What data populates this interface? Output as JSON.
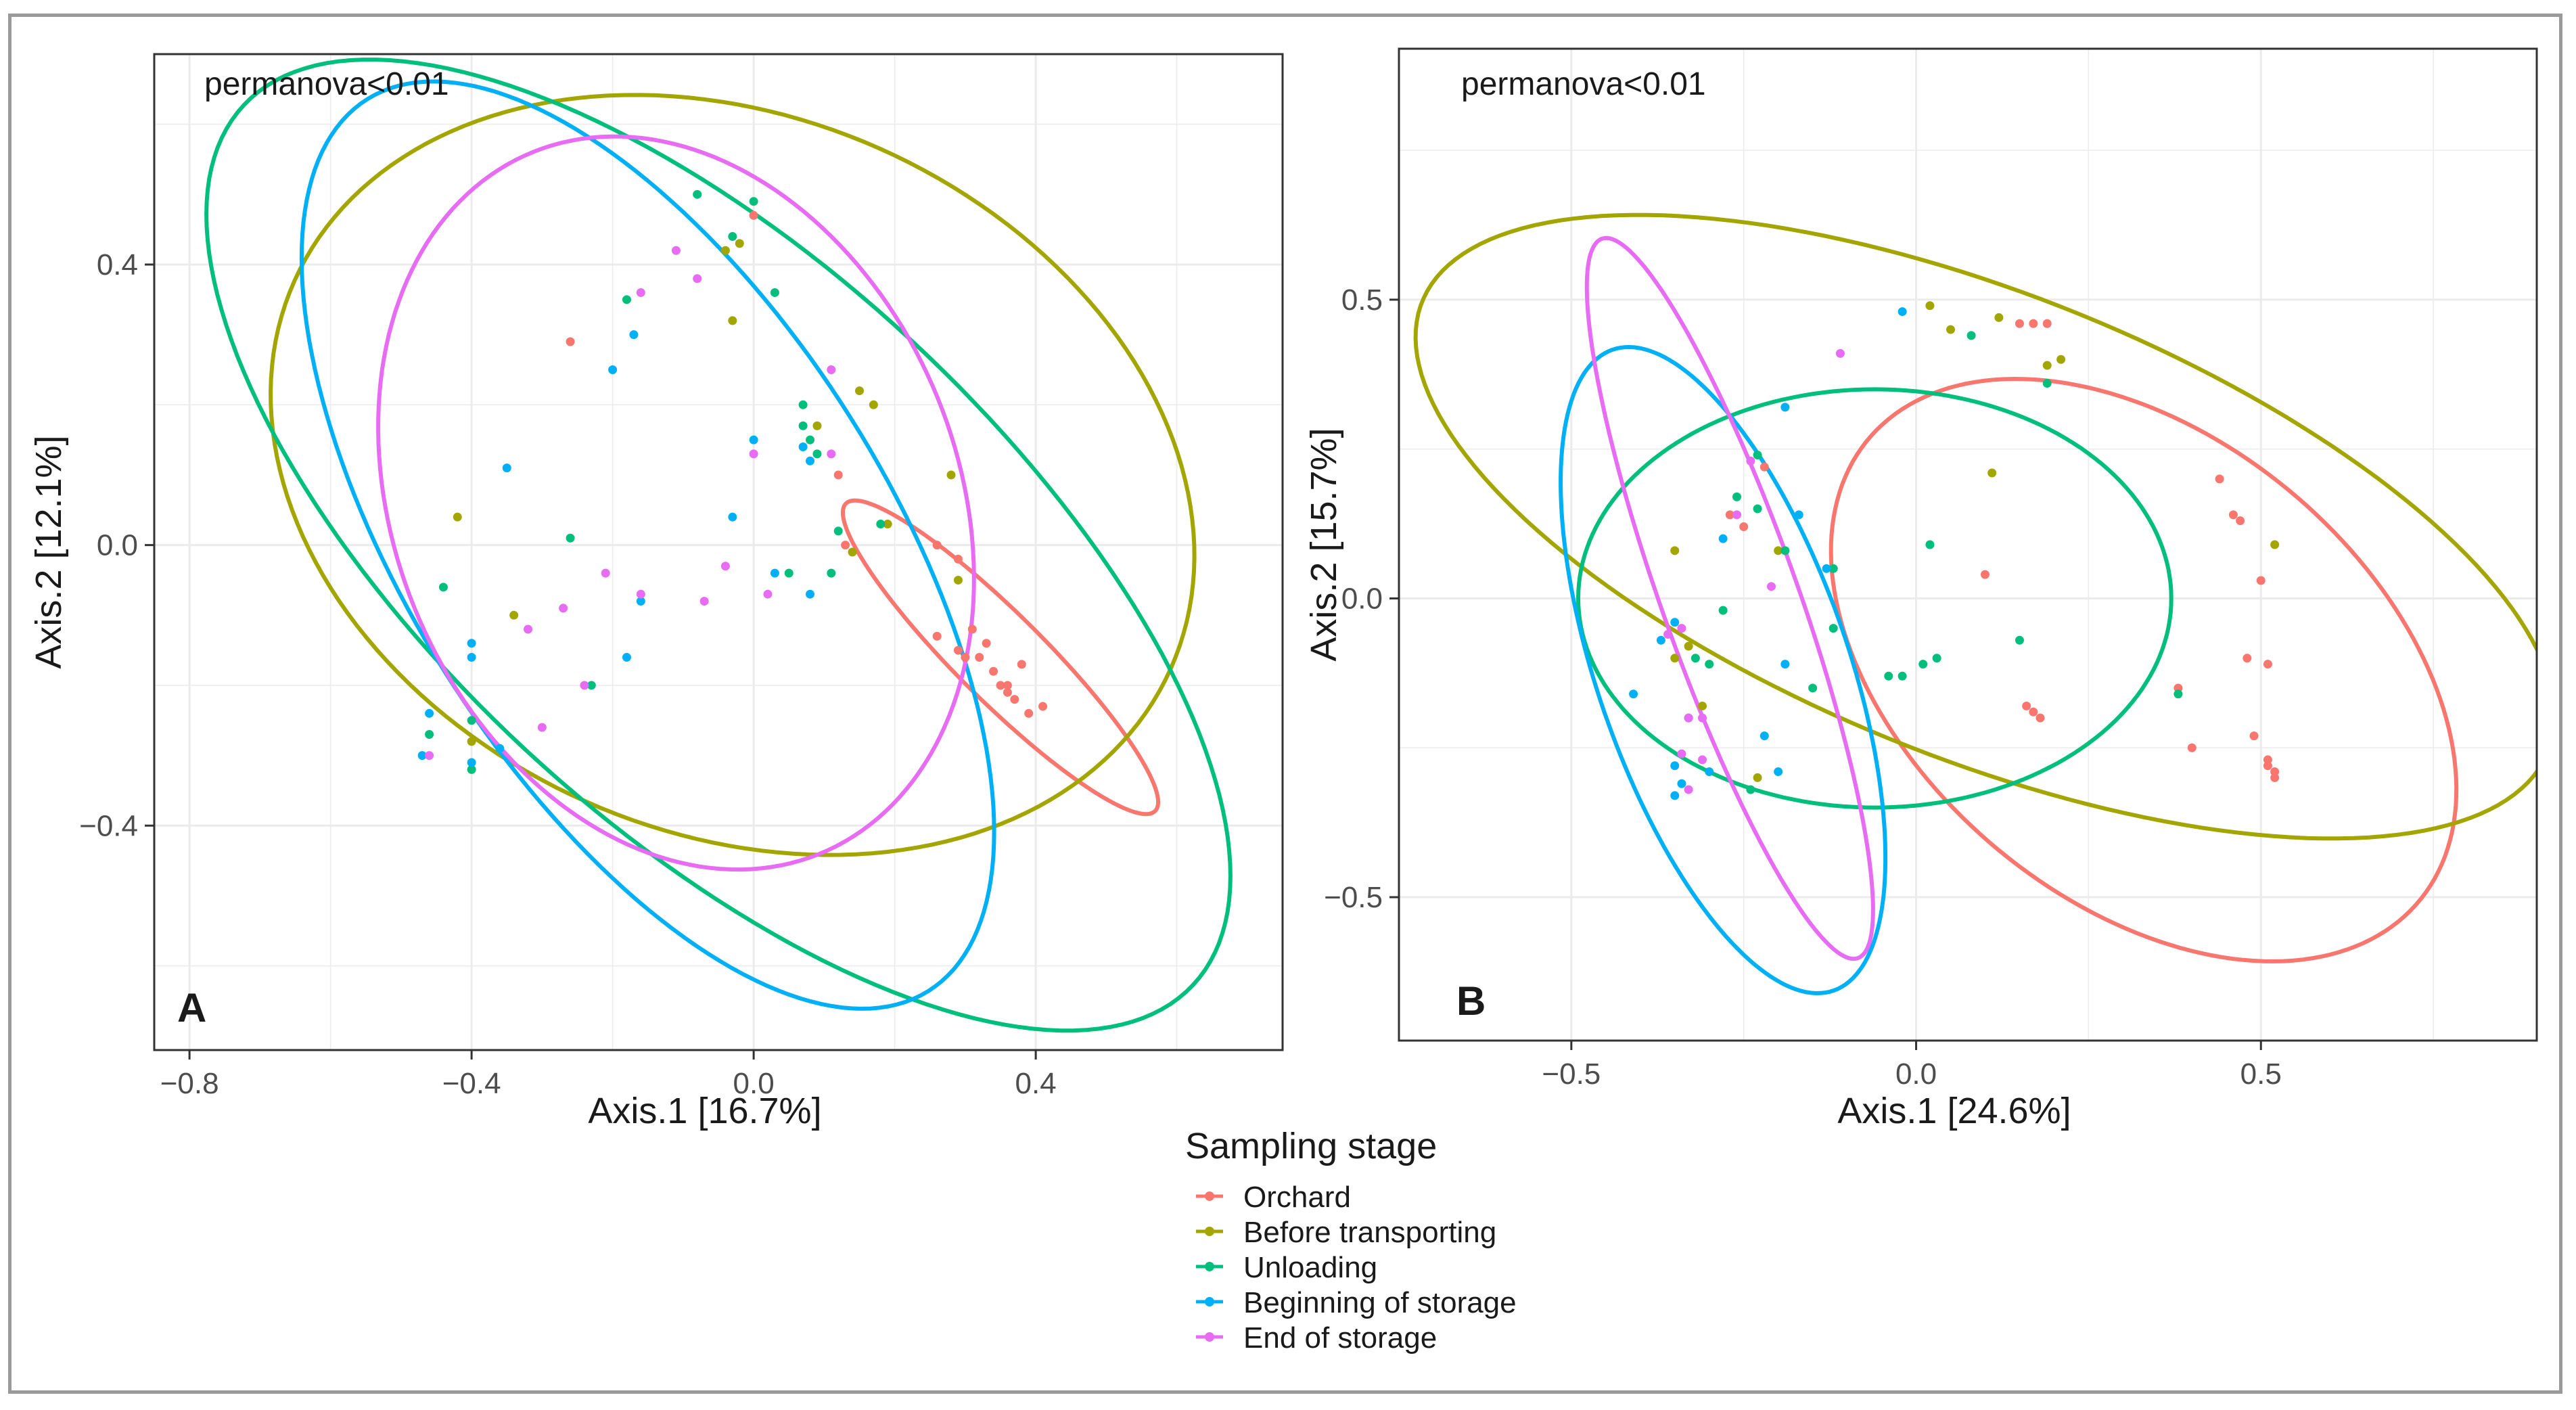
{
  "legend": {
    "title": "Sampling stage",
    "items": [
      {
        "label": "Orchard",
        "color": "#F8766D"
      },
      {
        "label": "Before transporting",
        "color": "#A3A500"
      },
      {
        "label": "Unloading",
        "color": "#00BF7D"
      },
      {
        "label": "Beginning of storage",
        "color": "#00B0F6"
      },
      {
        "label": "End of storage",
        "color": "#E76BF3"
      }
    ]
  },
  "chart_data": [
    {
      "type": "scatter",
      "panel": "A",
      "annotation": "permanova<0.01",
      "xlabel": "Axis.1   [16.7%]",
      "ylabel": "Axis.2   [12.1%]",
      "xlim": [
        -0.85,
        0.75
      ],
      "ylim": [
        -0.72,
        0.7
      ],
      "xticks": [
        -0.8,
        -0.4,
        0.0,
        0.4
      ],
      "xtick_labels": [
        "−0.8",
        "−0.4",
        "0.0",
        "0.4"
      ],
      "yticks": [
        -0.4,
        0.0,
        0.4
      ],
      "ytick_labels": [
        "−0.4",
        "0.0",
        "0.4"
      ],
      "grid": true,
      "series": [
        {
          "name": "Orchard",
          "color": "#F8766D",
          "points": [
            [
              0.0,
              0.47
            ],
            [
              -0.26,
              0.29
            ],
            [
              0.12,
              0.1
            ],
            [
              0.13,
              0.0
            ],
            [
              0.26,
              0.0
            ],
            [
              0.29,
              -0.02
            ],
            [
              0.26,
              -0.13
            ],
            [
              0.29,
              -0.15
            ],
            [
              0.31,
              -0.12
            ],
            [
              0.3,
              -0.16
            ],
            [
              0.32,
              -0.16
            ],
            [
              0.34,
              -0.18
            ],
            [
              0.35,
              -0.2
            ],
            [
              0.36,
              -0.21
            ],
            [
              0.37,
              -0.22
            ],
            [
              0.38,
              -0.17
            ],
            [
              0.39,
              -0.24
            ],
            [
              0.41,
              -0.23
            ],
            [
              0.36,
              -0.2
            ],
            [
              0.33,
              -0.14
            ]
          ],
          "ellipse": {
            "cx": 0.35,
            "cy": -0.16,
            "rx": 0.31,
            "ry": 0.062,
            "angle_deg": -45
          }
        },
        {
          "name": "Before transporting",
          "color": "#A3A500",
          "points": [
            [
              -0.04,
              0.42
            ],
            [
              -0.02,
              0.43
            ],
            [
              -0.03,
              0.32
            ],
            [
              0.15,
              0.22
            ],
            [
              0.17,
              0.2
            ],
            [
              0.09,
              0.17
            ],
            [
              -0.42,
              0.04
            ],
            [
              -0.34,
              -0.1
            ],
            [
              -0.4,
              -0.28
            ],
            [
              0.29,
              -0.05
            ],
            [
              0.28,
              0.1
            ],
            [
              0.19,
              0.03
            ],
            [
              0.14,
              -0.01
            ]
          ],
          "ellipse": {
            "cx": -0.03,
            "cy": 0.1,
            "rx": 0.68,
            "ry": 0.51,
            "angle_deg": -24
          }
        },
        {
          "name": "Unloading",
          "color": "#00BF7D",
          "points": [
            [
              0.0,
              0.49
            ],
            [
              -0.03,
              0.44
            ],
            [
              -0.08,
              0.5
            ],
            [
              -0.18,
              0.35
            ],
            [
              0.03,
              0.36
            ],
            [
              0.07,
              0.2
            ],
            [
              0.07,
              0.17
            ],
            [
              0.08,
              0.15
            ],
            [
              0.12,
              0.02
            ],
            [
              0.05,
              -0.04
            ],
            [
              0.11,
              -0.04
            ],
            [
              -0.26,
              0.01
            ],
            [
              -0.44,
              -0.06
            ],
            [
              -0.4,
              -0.25
            ],
            [
              -0.46,
              -0.27
            ],
            [
              -0.23,
              -0.2
            ],
            [
              -0.4,
              -0.32
            ],
            [
              0.18,
              0.03
            ],
            [
              0.09,
              0.13
            ]
          ],
          "ellipse": {
            "cx": -0.05,
            "cy": 0.0,
            "rx": 0.92,
            "ry": 0.4,
            "angle_deg": -43
          }
        },
        {
          "name": "Beginning of storage",
          "color": "#00B0F6",
          "points": [
            [
              -0.2,
              0.25
            ],
            [
              -0.17,
              0.3
            ],
            [
              -0.35,
              0.11
            ],
            [
              0.0,
              0.15
            ],
            [
              -0.03,
              0.04
            ],
            [
              0.03,
              -0.04
            ],
            [
              0.08,
              -0.07
            ],
            [
              -0.16,
              -0.08
            ],
            [
              -0.4,
              -0.16
            ],
            [
              -0.4,
              -0.14
            ],
            [
              -0.46,
              -0.24
            ],
            [
              -0.36,
              -0.29
            ],
            [
              -0.18,
              -0.16
            ],
            [
              -0.47,
              -0.3
            ],
            [
              -0.4,
              -0.31
            ],
            [
              0.07,
              0.14
            ],
            [
              0.08,
              0.12
            ]
          ],
          "ellipse": {
            "cx": -0.15,
            "cy": 0.0,
            "rx": 0.75,
            "ry": 0.34,
            "angle_deg": -58
          }
        },
        {
          "name": "End of storage",
          "color": "#E76BF3",
          "points": [
            [
              -0.11,
              0.42
            ],
            [
              -0.08,
              0.38
            ],
            [
              -0.16,
              0.36
            ],
            [
              0.11,
              0.25
            ],
            [
              0.0,
              0.13
            ],
            [
              0.11,
              0.13
            ],
            [
              -0.21,
              -0.04
            ],
            [
              -0.16,
              -0.07
            ],
            [
              -0.27,
              -0.09
            ],
            [
              -0.32,
              -0.12
            ],
            [
              -0.24,
              -0.2
            ],
            [
              -0.3,
              -0.26
            ],
            [
              -0.07,
              -0.08
            ],
            [
              0.02,
              -0.07
            ],
            [
              -0.46,
              -0.3
            ],
            [
              -0.04,
              -0.03
            ]
          ],
          "ellipse": {
            "cx": -0.11,
            "cy": 0.06,
            "rx": 0.54,
            "ry": 0.4,
            "angle_deg": -68
          }
        }
      ]
    },
    {
      "type": "scatter",
      "panel": "B",
      "annotation": "permanova<0.01",
      "xlabel": "Axis.1   [24.6%]",
      "ylabel": "Axis.2   [15.7%]",
      "xlim": [
        -0.75,
        0.9
      ],
      "ylim": [
        -0.74,
        0.92
      ],
      "xticks": [
        -0.5,
        0.0,
        0.5
      ],
      "xtick_labels": [
        "−0.5",
        "0.0",
        "0.5"
      ],
      "yticks": [
        -0.5,
        0.0,
        0.5
      ],
      "ytick_labels": [
        "−0.5",
        "0.0",
        "0.5"
      ],
      "grid": true,
      "series": [
        {
          "name": "Orchard",
          "color": "#F8766D",
          "points": [
            [
              0.15,
              0.46
            ],
            [
              0.17,
              0.46
            ],
            [
              0.19,
              0.46
            ],
            [
              0.1,
              0.04
            ],
            [
              0.44,
              0.2
            ],
            [
              0.46,
              0.14
            ],
            [
              0.47,
              0.13
            ],
            [
              0.38,
              -0.15
            ],
            [
              0.5,
              0.03
            ],
            [
              0.48,
              -0.1
            ],
            [
              0.51,
              -0.11
            ],
            [
              0.49,
              -0.23
            ],
            [
              0.51,
              -0.28
            ],
            [
              0.52,
              -0.29
            ],
            [
              0.52,
              -0.3
            ],
            [
              0.51,
              -0.27
            ],
            [
              0.4,
              -0.25
            ],
            [
              0.16,
              -0.18
            ],
            [
              0.17,
              -0.19
            ],
            [
              0.18,
              -0.2
            ],
            [
              -0.22,
              0.22
            ],
            [
              -0.25,
              0.12
            ],
            [
              -0.27,
              0.14
            ]
          ],
          "ellipse": {
            "cx": 0.33,
            "cy": -0.12,
            "rx": 0.56,
            "ry": 0.36,
            "angle_deg": -50
          }
        },
        {
          "name": "Before transporting",
          "color": "#A3A500",
          "points": [
            [
              0.02,
              0.49
            ],
            [
              0.05,
              0.45
            ],
            [
              0.12,
              0.47
            ],
            [
              0.19,
              0.39
            ],
            [
              0.21,
              0.4
            ],
            [
              0.11,
              0.21
            ],
            [
              0.52,
              0.09
            ],
            [
              -0.35,
              0.08
            ],
            [
              -0.31,
              -0.18
            ],
            [
              -0.33,
              -0.08
            ],
            [
              -0.35,
              -0.1
            ],
            [
              -0.2,
              0.08
            ],
            [
              -0.23,
              -0.3
            ]
          ],
          "ellipse": {
            "cx": 0.1,
            "cy": 0.12,
            "rx": 0.9,
            "ry": 0.38,
            "angle_deg": -26
          }
        },
        {
          "name": "Unloading",
          "color": "#00BF7D",
          "points": [
            [
              0.08,
              0.44
            ],
            [
              0.19,
              0.36
            ],
            [
              -0.23,
              0.24
            ],
            [
              -0.26,
              0.17
            ],
            [
              -0.23,
              0.15
            ],
            [
              -0.12,
              0.05
            ],
            [
              -0.19,
              0.08
            ],
            [
              -0.28,
              -0.02
            ],
            [
              -0.12,
              -0.05
            ],
            [
              -0.04,
              -0.13
            ],
            [
              -0.02,
              -0.13
            ],
            [
              0.01,
              -0.11
            ],
            [
              0.03,
              -0.1
            ],
            [
              0.15,
              -0.07
            ],
            [
              0.38,
              -0.16
            ],
            [
              -0.15,
              -0.15
            ],
            [
              -0.3,
              -0.11
            ],
            [
              -0.32,
              -0.1
            ],
            [
              0.02,
              0.09
            ],
            [
              -0.24,
              -0.32
            ]
          ],
          "ellipse": {
            "cx": -0.06,
            "cy": 0.0,
            "rx": 0.35,
            "ry": 0.43,
            "angle_deg": -90
          }
        },
        {
          "name": "Beginning of storage",
          "color": "#00B0F6",
          "points": [
            [
              -0.02,
              0.48
            ],
            [
              -0.19,
              0.32
            ],
            [
              -0.17,
              0.14
            ],
            [
              -0.13,
              0.05
            ],
            [
              -0.28,
              0.1
            ],
            [
              -0.35,
              -0.04
            ],
            [
              -0.37,
              -0.07
            ],
            [
              -0.41,
              -0.16
            ],
            [
              -0.33,
              -0.2
            ],
            [
              -0.35,
              -0.28
            ],
            [
              -0.3,
              -0.29
            ],
            [
              -0.34,
              -0.31
            ],
            [
              -0.35,
              -0.33
            ],
            [
              -0.22,
              -0.23
            ],
            [
              -0.2,
              -0.29
            ],
            [
              -0.19,
              -0.11
            ]
          ],
          "ellipse": {
            "cx": -0.28,
            "cy": -0.12,
            "rx": 0.56,
            "ry": 0.185,
            "angle_deg": -74
          }
        },
        {
          "name": "End of storage",
          "color": "#E76BF3",
          "points": [
            [
              -0.11,
              0.41
            ],
            [
              -0.24,
              0.23
            ],
            [
              -0.26,
              0.14
            ],
            [
              -0.21,
              0.02
            ],
            [
              -0.34,
              -0.05
            ],
            [
              -0.33,
              -0.2
            ],
            [
              -0.31,
              -0.2
            ],
            [
              -0.34,
              -0.26
            ],
            [
              -0.31,
              -0.27
            ],
            [
              -0.33,
              -0.32
            ],
            [
              -0.36,
              -0.06
            ]
          ],
          "ellipse": {
            "cx": -0.27,
            "cy": 0.0,
            "rx": 0.63,
            "ry": 0.1,
            "angle_deg": -73
          }
        }
      ]
    }
  ]
}
